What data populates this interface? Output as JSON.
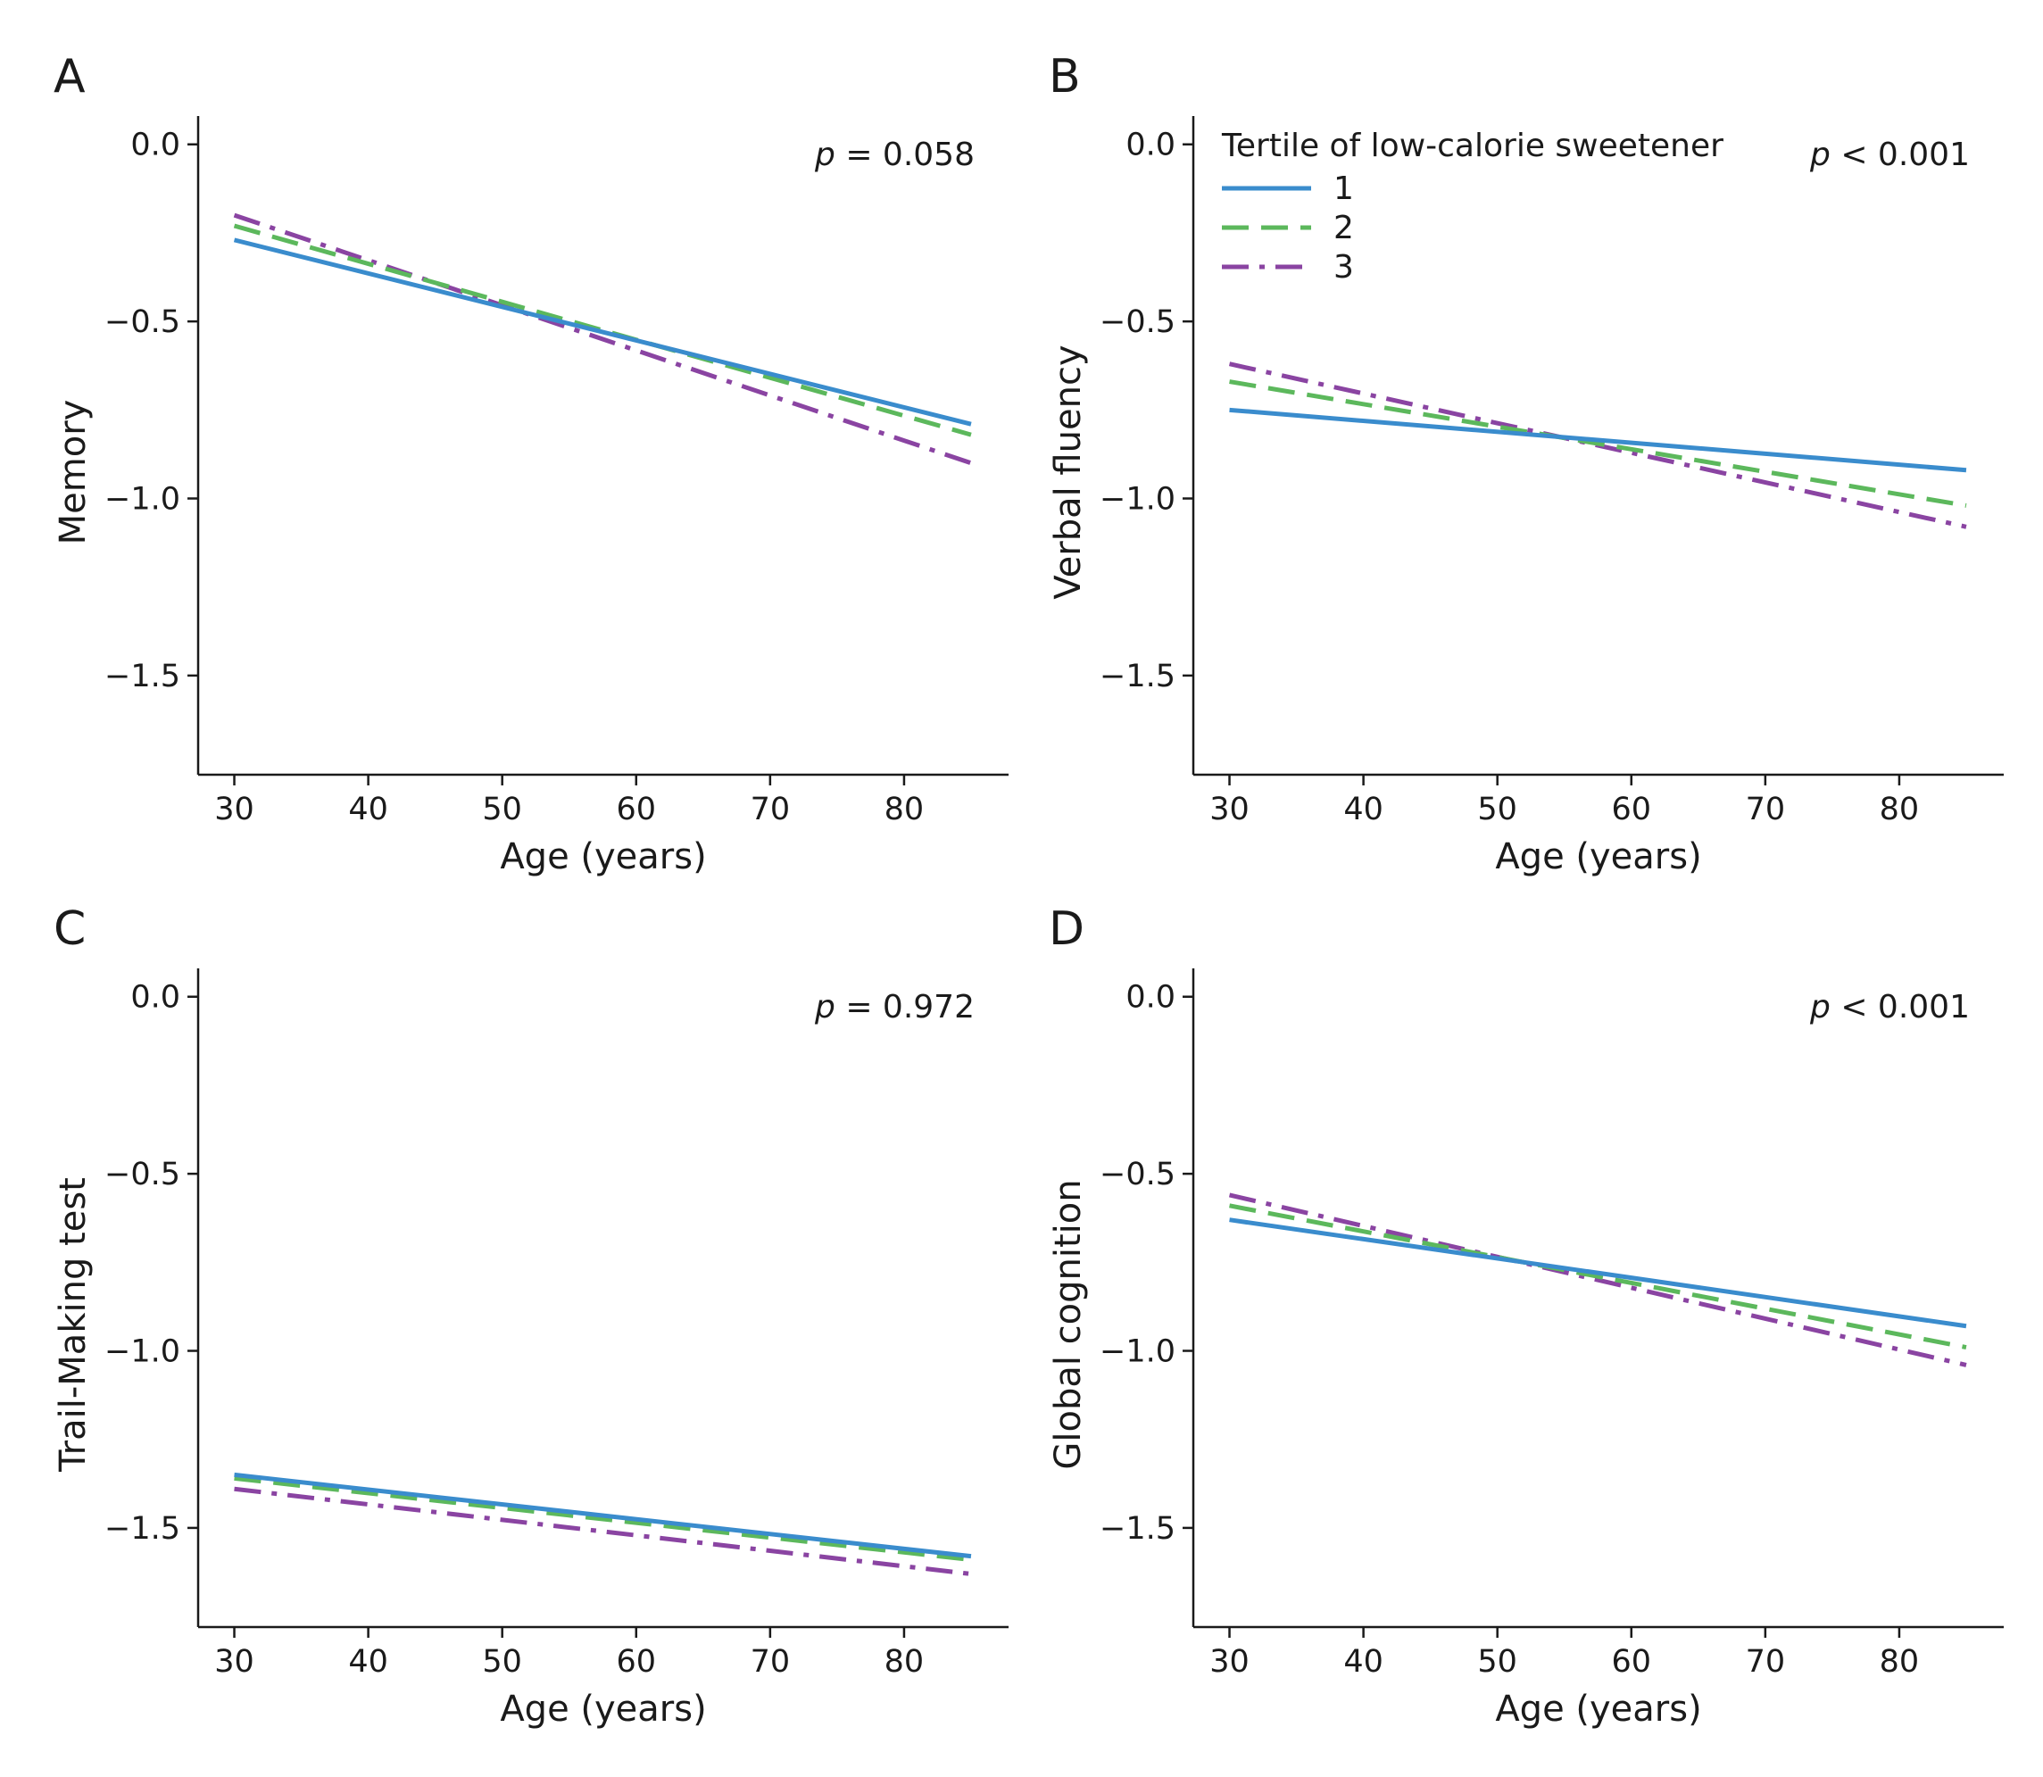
{
  "colors": {
    "tertile_1": "#3a8ccd",
    "tertile_2": "#5cb85c",
    "tertile_3": "#8a44a2"
  },
  "legend": {
    "title": "Tertile of low-calorie sweetener",
    "items": [
      {
        "label": "1",
        "style": "solid",
        "color": "#3a8ccd"
      },
      {
        "label": "2",
        "style": "dashed",
        "color": "#5cb85c"
      },
      {
        "label": "3",
        "style": "dash-dot",
        "color": "#8a44a2"
      }
    ]
  },
  "chart_data": [
    {
      "panel": "A",
      "type": "line",
      "xlabel": "Age (years)",
      "ylabel": "Memory",
      "p_prefix": "p",
      "p_text": " = 0.058",
      "xlim": [
        27.3,
        87.8
      ],
      "ylim": [
        -1.78,
        0.08
      ],
      "xticks": [
        30,
        40,
        50,
        60,
        70,
        80
      ],
      "yticks": [
        0.0,
        -0.5,
        -1.0,
        -1.5
      ],
      "ytick_labels": [
        "0.0",
        "−0.5",
        "−1.0",
        "−1.5"
      ],
      "show_legend": false,
      "series": [
        {
          "name": "1",
          "x": [
            30,
            85
          ],
          "y": [
            -0.27,
            -0.79
          ]
        },
        {
          "name": "2",
          "x": [
            30,
            85
          ],
          "y": [
            -0.23,
            -0.82
          ]
        },
        {
          "name": "3",
          "x": [
            30,
            85
          ],
          "y": [
            -0.2,
            -0.9
          ]
        }
      ]
    },
    {
      "panel": "B",
      "type": "line",
      "xlabel": "Age (years)",
      "ylabel": "Verbal fluency",
      "p_prefix": "p",
      "p_text": " < 0.001",
      "xlim": [
        27.3,
        87.8
      ],
      "ylim": [
        -1.78,
        0.08
      ],
      "xticks": [
        30,
        40,
        50,
        60,
        70,
        80
      ],
      "yticks": [
        0.0,
        -0.5,
        -1.0,
        -1.5
      ],
      "ytick_labels": [
        "0.0",
        "−0.5",
        "−1.0",
        "−1.5"
      ],
      "show_legend": true,
      "series": [
        {
          "name": "1",
          "x": [
            30,
            85
          ],
          "y": [
            -0.75,
            -0.92
          ]
        },
        {
          "name": "2",
          "x": [
            30,
            85
          ],
          "y": [
            -0.67,
            -1.02
          ]
        },
        {
          "name": "3",
          "x": [
            30,
            85
          ],
          "y": [
            -0.62,
            -1.08
          ]
        }
      ]
    },
    {
      "panel": "C",
      "type": "line",
      "xlabel": "Age (years)",
      "ylabel": "Trail-Making test",
      "p_prefix": "p",
      "p_text": " = 0.972",
      "xlim": [
        27.3,
        87.8
      ],
      "ylim": [
        -1.78,
        0.08
      ],
      "xticks": [
        30,
        40,
        50,
        60,
        70,
        80
      ],
      "yticks": [
        0.0,
        -0.5,
        -1.0,
        -1.5
      ],
      "ytick_labels": [
        "0.0",
        "−0.5",
        "−1.0",
        "−1.5"
      ],
      "show_legend": false,
      "series": [
        {
          "name": "1",
          "x": [
            30,
            85
          ],
          "y": [
            -1.35,
            -1.58
          ]
        },
        {
          "name": "2",
          "x": [
            30,
            85
          ],
          "y": [
            -1.36,
            -1.59
          ]
        },
        {
          "name": "3",
          "x": [
            30,
            85
          ],
          "y": [
            -1.39,
            -1.63
          ]
        }
      ]
    },
    {
      "panel": "D",
      "type": "line",
      "xlabel": "Age (years)",
      "ylabel": "Global cognition",
      "p_prefix": "p",
      "p_text": " < 0.001",
      "xlim": [
        27.3,
        87.8
      ],
      "ylim": [
        -1.78,
        0.08
      ],
      "xticks": [
        30,
        40,
        50,
        60,
        70,
        80
      ],
      "yticks": [
        0.0,
        -0.5,
        -1.0,
        -1.5
      ],
      "ytick_labels": [
        "0.0",
        "−0.5",
        "−1.0",
        "−1.5"
      ],
      "show_legend": false,
      "series": [
        {
          "name": "1",
          "x": [
            30,
            85
          ],
          "y": [
            -0.63,
            -0.93
          ]
        },
        {
          "name": "2",
          "x": [
            30,
            85
          ],
          "y": [
            -0.59,
            -0.99
          ]
        },
        {
          "name": "3",
          "x": [
            30,
            85
          ],
          "y": [
            -0.56,
            -1.04
          ]
        }
      ]
    }
  ]
}
